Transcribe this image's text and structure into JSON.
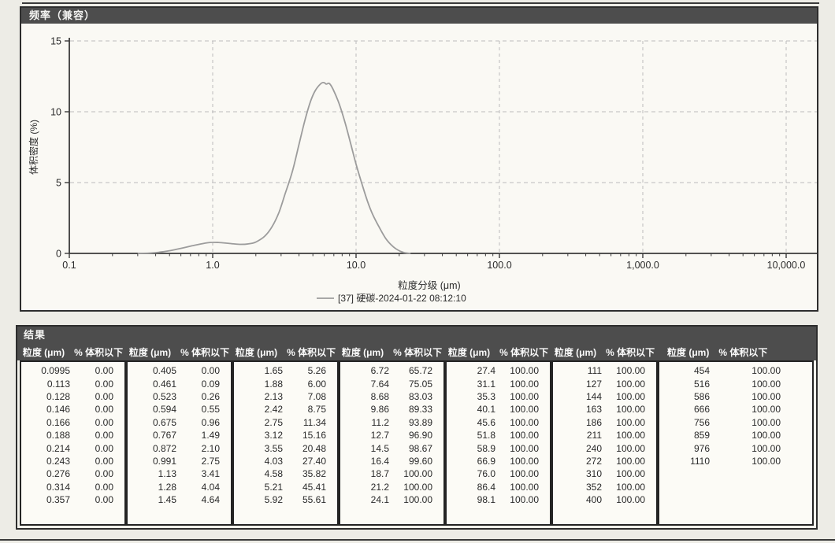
{
  "chart_data": {
    "type": "line",
    "title": "频率（兼容）",
    "xlabel": "粒度分级 (μm)",
    "ylabel": "体积密度 (%)",
    "x_scale": "log",
    "xlim": [
      0.1,
      10000
    ],
    "ylim": [
      0,
      15
    ],
    "grid": true,
    "legend_position": "bottom-center",
    "x_tick_values": [
      0.1,
      1,
      10,
      100,
      1000,
      10000
    ],
    "x_tick_labels": [
      "0.1",
      "1.0",
      "10.0",
      "100.0",
      "1,000.0",
      "10,000.0"
    ],
    "y_tick_values": [
      0,
      5,
      10,
      15
    ],
    "curve_color": "#9c9c9c",
    "series": [
      {
        "name": "[37] 硬碳-2024-01-22 08:12:10",
        "points": [
          [
            0.3,
            0
          ],
          [
            0.36,
            0.02
          ],
          [
            0.42,
            0.08
          ],
          [
            0.48,
            0.16
          ],
          [
            0.55,
            0.27
          ],
          [
            0.63,
            0.4
          ],
          [
            0.72,
            0.54
          ],
          [
            0.82,
            0.66
          ],
          [
            0.92,
            0.75
          ],
          [
            1.0,
            0.78
          ],
          [
            1.1,
            0.77
          ],
          [
            1.25,
            0.72
          ],
          [
            1.4,
            0.67
          ],
          [
            1.55,
            0.64
          ],
          [
            1.7,
            0.65
          ],
          [
            1.85,
            0.7
          ],
          [
            2.0,
            0.8
          ],
          [
            2.3,
            1.2
          ],
          [
            2.6,
            1.9
          ],
          [
            2.9,
            2.9
          ],
          [
            3.2,
            4.2
          ],
          [
            3.6,
            5.8
          ],
          [
            4.0,
            7.7
          ],
          [
            4.4,
            9.4
          ],
          [
            4.8,
            10.7
          ],
          [
            5.2,
            11.5
          ],
          [
            5.7,
            12.0
          ],
          [
            6.0,
            12.05
          ],
          [
            6.2,
            11.95
          ],
          [
            6.5,
            12.0
          ],
          [
            6.9,
            11.6
          ],
          [
            7.6,
            10.6
          ],
          [
            8.4,
            9.2
          ],
          [
            9.2,
            7.7
          ],
          [
            10.0,
            6.3
          ],
          [
            11.0,
            4.9
          ],
          [
            12.0,
            3.7
          ],
          [
            13.0,
            2.8
          ],
          [
            14.5,
            1.85
          ],
          [
            16.0,
            1.1
          ],
          [
            17.5,
            0.62
          ],
          [
            19.0,
            0.32
          ],
          [
            20.5,
            0.14
          ],
          [
            22.0,
            0.04
          ],
          [
            24.0,
            0.0
          ]
        ]
      }
    ]
  },
  "table": {
    "title": "结果",
    "size_header": "粒度 (μm)",
    "cum_header": "% 体积以下",
    "groups": [
      {
        "rows": [
          [
            "0.0995",
            "0.00"
          ],
          [
            "0.113",
            "0.00"
          ],
          [
            "0.128",
            "0.00"
          ],
          [
            "0.146",
            "0.00"
          ],
          [
            "0.166",
            "0.00"
          ],
          [
            "0.188",
            "0.00"
          ],
          [
            "0.214",
            "0.00"
          ],
          [
            "0.243",
            "0.00"
          ],
          [
            "0.276",
            "0.00"
          ],
          [
            "0.314",
            "0.00"
          ],
          [
            "0.357",
            "0.00"
          ]
        ]
      },
      {
        "rows": [
          [
            "0.405",
            "0.00"
          ],
          [
            "0.461",
            "0.09"
          ],
          [
            "0.523",
            "0.26"
          ],
          [
            "0.594",
            "0.55"
          ],
          [
            "0.675",
            "0.96"
          ],
          [
            "0.767",
            "1.49"
          ],
          [
            "0.872",
            "2.10"
          ],
          [
            "0.991",
            "2.75"
          ],
          [
            "1.13",
            "3.41"
          ],
          [
            "1.28",
            "4.04"
          ],
          [
            "1.45",
            "4.64"
          ]
        ]
      },
      {
        "rows": [
          [
            "1.65",
            "5.26"
          ],
          [
            "1.88",
            "6.00"
          ],
          [
            "2.13",
            "7.08"
          ],
          [
            "2.42",
            "8.75"
          ],
          [
            "2.75",
            "11.34"
          ],
          [
            "3.12",
            "15.16"
          ],
          [
            "3.55",
            "20.48"
          ],
          [
            "4.03",
            "27.40"
          ],
          [
            "4.58",
            "35.82"
          ],
          [
            "5.21",
            "45.41"
          ],
          [
            "5.92",
            "55.61"
          ]
        ]
      },
      {
        "rows": [
          [
            "6.72",
            "65.72"
          ],
          [
            "7.64",
            "75.05"
          ],
          [
            "8.68",
            "83.03"
          ],
          [
            "9.86",
            "89.33"
          ],
          [
            "11.2",
            "93.89"
          ],
          [
            "12.7",
            "96.90"
          ],
          [
            "14.5",
            "98.67"
          ],
          [
            "16.4",
            "99.60"
          ],
          [
            "18.7",
            "100.00"
          ],
          [
            "21.2",
            "100.00"
          ],
          [
            "24.1",
            "100.00"
          ]
        ]
      },
      {
        "rows": [
          [
            "27.4",
            "100.00"
          ],
          [
            "31.1",
            "100.00"
          ],
          [
            "35.3",
            "100.00"
          ],
          [
            "40.1",
            "100.00"
          ],
          [
            "45.6",
            "100.00"
          ],
          [
            "51.8",
            "100.00"
          ],
          [
            "58.9",
            "100.00"
          ],
          [
            "66.9",
            "100.00"
          ],
          [
            "76.0",
            "100.00"
          ],
          [
            "86.4",
            "100.00"
          ],
          [
            "98.1",
            "100.00"
          ]
        ]
      },
      {
        "rows": [
          [
            "111",
            "100.00"
          ],
          [
            "127",
            "100.00"
          ],
          [
            "144",
            "100.00"
          ],
          [
            "163",
            "100.00"
          ],
          [
            "186",
            "100.00"
          ],
          [
            "211",
            "100.00"
          ],
          [
            "240",
            "100.00"
          ],
          [
            "272",
            "100.00"
          ],
          [
            "310",
            "100.00"
          ],
          [
            "352",
            "100.00"
          ],
          [
            "400",
            "100.00"
          ]
        ]
      },
      {
        "rows": [
          [
            "454",
            "100.00"
          ],
          [
            "516",
            "100.00"
          ],
          [
            "586",
            "100.00"
          ],
          [
            "666",
            "100.00"
          ],
          [
            "756",
            "100.00"
          ],
          [
            "859",
            "100.00"
          ],
          [
            "976",
            "100.00"
          ],
          [
            "1110",
            "100.00"
          ]
        ]
      }
    ]
  },
  "colors": {
    "titlebar": "#4d4d4d",
    "panel_border": "#2d2d2d",
    "grid": "#bcbcbc",
    "axis": "#3a3a3a",
    "text": "#2a2a2a",
    "curve": "#9c9c9c"
  }
}
